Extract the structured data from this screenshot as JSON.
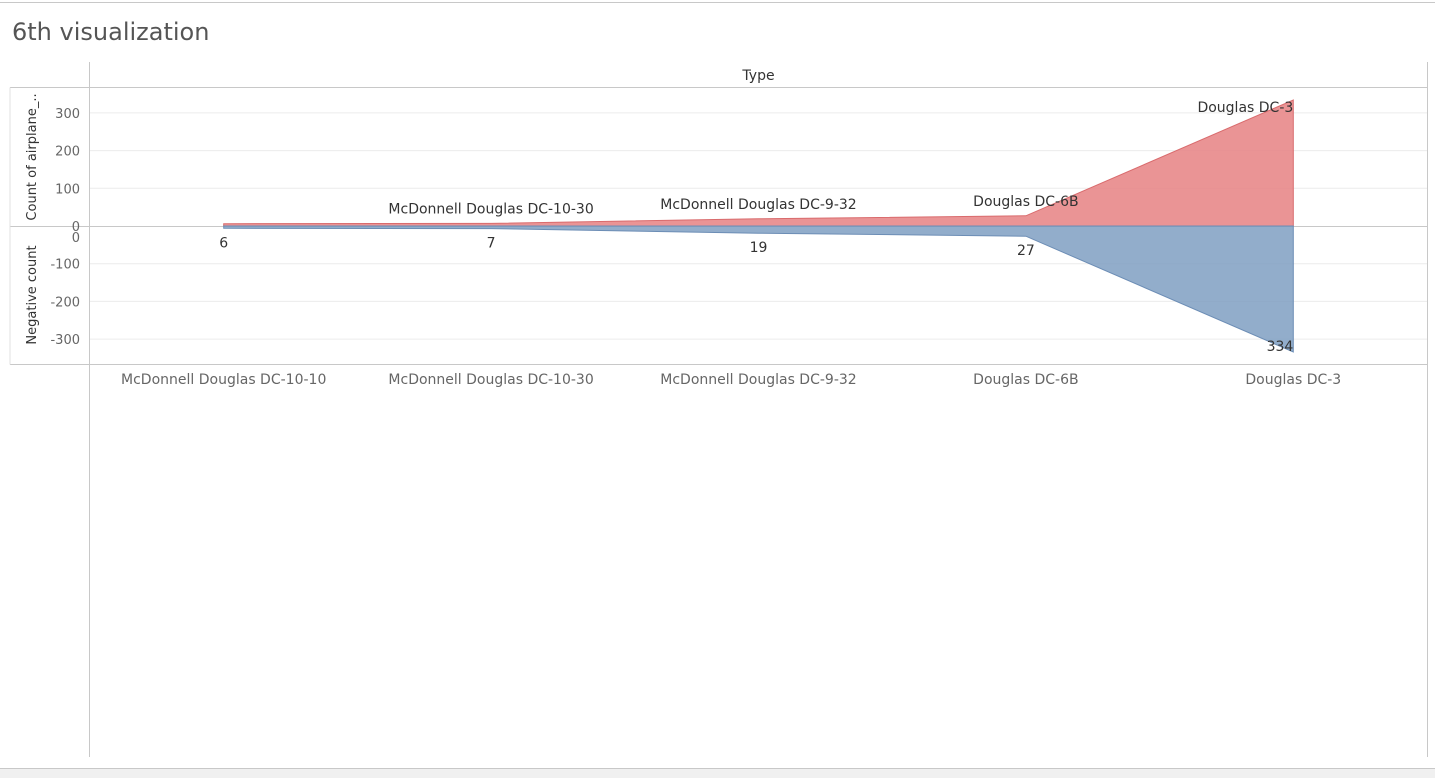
{
  "page": {
    "title": "6th visualization"
  },
  "chart_data": {
    "type": "area",
    "column_header": "Type",
    "categories": [
      "McDonnell Douglas DC-10-10",
      "McDonnell Douglas DC-10-30",
      "McDonnell Douglas DC-9-32",
      "Douglas DC-6B",
      "Douglas DC-3"
    ],
    "panes": [
      {
        "name": "top",
        "ylabel": "Count of airplane_..",
        "ylim": [
          0,
          350
        ],
        "yticks": [
          0,
          100,
          200,
          300
        ],
        "color": "#e8888a",
        "values": [
          6,
          7,
          19,
          27,
          334
        ],
        "data_labels": [
          {
            "index": 1,
            "text": "McDonnell Douglas DC-10-30"
          },
          {
            "index": 2,
            "text": "McDonnell Douglas DC-9-32"
          },
          {
            "index": 3,
            "text": "Douglas DC-6B"
          },
          {
            "index": 4,
            "text": "Douglas DC-3"
          }
        ]
      },
      {
        "name": "bottom",
        "ylabel": "Negative count",
        "ylim": [
          -350,
          0
        ],
        "yticks": [
          0,
          -100,
          -200,
          -300
        ],
        "color": "#7f9fc2",
        "values": [
          -6,
          -7,
          -19,
          -27,
          -334
        ],
        "data_labels": [
          {
            "index": 0,
            "text": "6"
          },
          {
            "index": 1,
            "text": "7"
          },
          {
            "index": 2,
            "text": "19"
          },
          {
            "index": 3,
            "text": "27"
          },
          {
            "index": 4,
            "text": "334"
          }
        ]
      }
    ],
    "grid": true
  }
}
